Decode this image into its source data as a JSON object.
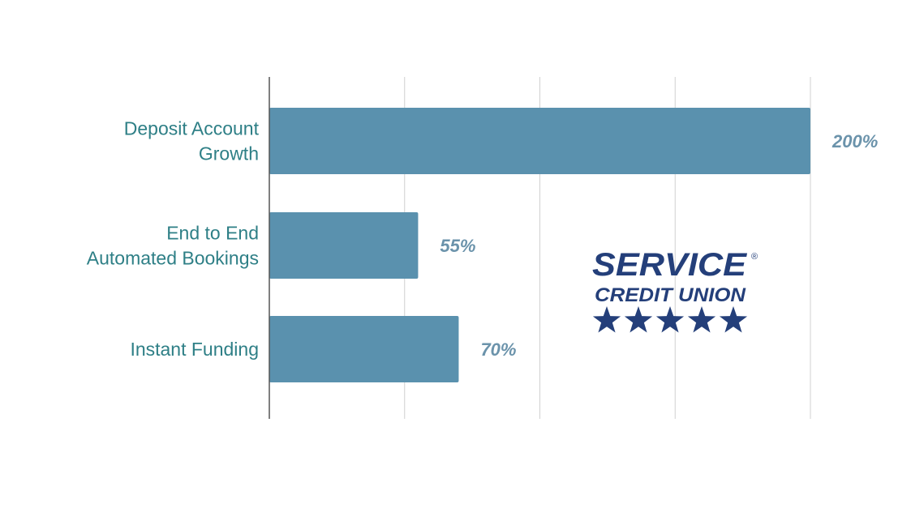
{
  "chart_data": {
    "type": "bar",
    "orientation": "horizontal",
    "categories": [
      [
        "Deposit Account",
        "Growth"
      ],
      [
        "End to End",
        "Automated Bookings"
      ],
      [
        "Instant Funding"
      ]
    ],
    "values": [
      200,
      55,
      70
    ],
    "value_labels": [
      "200%",
      "55%",
      "70%"
    ],
    "xlim": [
      0,
      200
    ],
    "grid": true,
    "bar_color": "#5a91ae",
    "label_color": "#2e7f86",
    "value_label_color": "#6b93ab"
  },
  "logo": {
    "line1": "SERVICE",
    "line2": "CREDIT UNION",
    "mark": "®",
    "stars": 5,
    "color": "#243f7a"
  }
}
